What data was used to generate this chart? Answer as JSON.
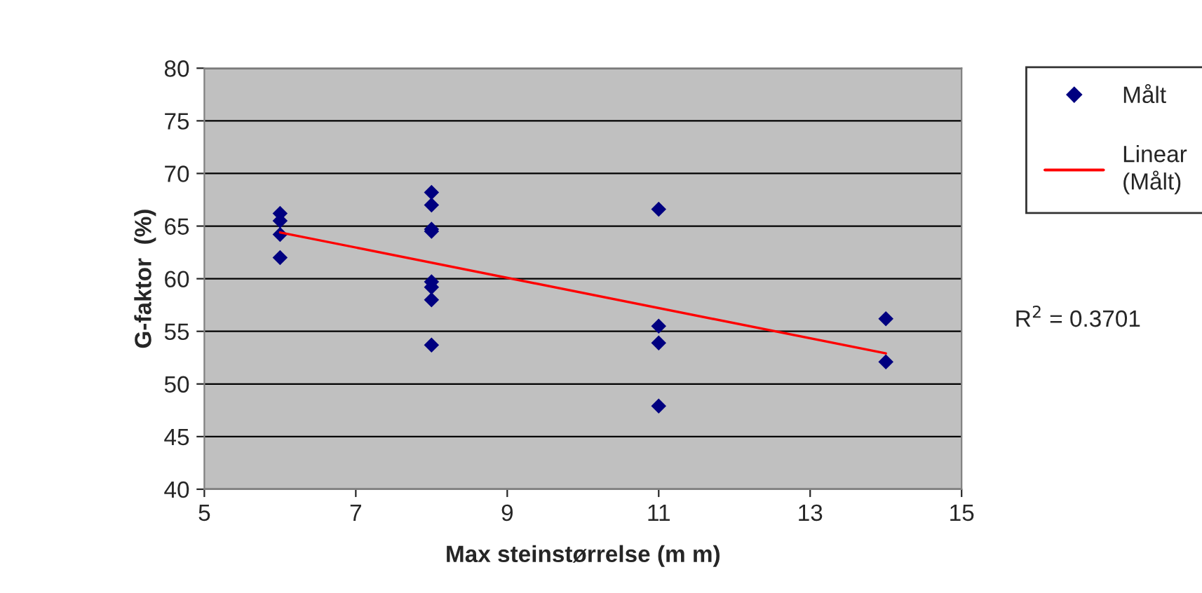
{
  "chart_data": {
    "type": "scatter",
    "xlabel": "Max steinstørrelse (m m)",
    "ylabel": "G-faktor  (%)",
    "xlim": [
      5,
      15
    ],
    "xticks": [
      5,
      7,
      9,
      11,
      13,
      15
    ],
    "ylim": [
      40,
      80
    ],
    "yticks": [
      40,
      45,
      50,
      55,
      60,
      65,
      70,
      75,
      80
    ],
    "grid": "y",
    "legend": "right",
    "marker": "diamond",
    "annotations": [
      "R$^{2}$ = 0.3701"
    ],
    "series": [
      {
        "name": "Målt",
        "color": "#000080",
        "x": [
          6,
          6,
          6,
          6,
          8,
          8,
          8,
          8,
          8,
          8,
          8,
          8,
          11,
          11,
          11,
          11,
          14,
          14
        ],
        "values": [
          66.2,
          65.5,
          64.2,
          62.0,
          68.2,
          67.0,
          64.7,
          64.5,
          59.7,
          59.2,
          58.0,
          53.7,
          66.6,
          55.5,
          53.9,
          47.9,
          56.2,
          52.1
        ]
      },
      {
        "name": "Linear (Målt)",
        "type": "line",
        "color": "#ff0000",
        "x": [
          6,
          14
        ],
        "values": [
          64.4,
          52.9
        ],
        "marker": "none"
      }
    ]
  }
}
